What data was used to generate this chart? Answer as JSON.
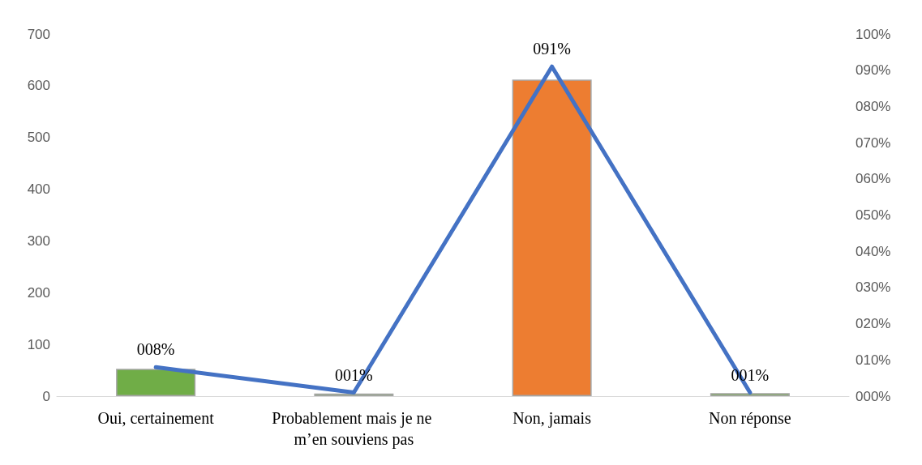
{
  "chart_data": {
    "type": "bar",
    "categories": [
      "Oui, certainement",
      "Probablement mais je ne m’en souviens pas",
      "Non, jamais",
      "Non réponse"
    ],
    "series": [
      {
        "colors": [
          "#70ad47",
          "#70ad47",
          "#ed7d31",
          "#70ad47"
        ],
        "values": [
          53,
          5,
          612,
          6
        ]
      },
      {
        "type": "line",
        "axis": "y2",
        "color": "#4472c4",
        "values": [
          8,
          1,
          91,
          1
        ],
        "value_labels": [
          "008%",
          "001%",
          "091%",
          "001%"
        ],
        "marker": "none"
      }
    ],
    "ylim": [
      0,
      700
    ],
    "yticks": [
      0,
      100,
      200,
      300,
      400,
      500,
      600,
      700
    ],
    "y2lim": [
      0,
      100
    ],
    "y2ticks": [
      {
        "value": 0,
        "label": "000%"
      },
      {
        "value": 10,
        "label": "010%"
      },
      {
        "value": 20,
        "label": "020%"
      },
      {
        "value": 30,
        "label": "030%"
      },
      {
        "value": 40,
        "label": "040%"
      },
      {
        "value": 50,
        "label": "050%"
      },
      {
        "value": 60,
        "label": "060%"
      },
      {
        "value": 70,
        "label": "070%"
      },
      {
        "value": 80,
        "label": "080%"
      },
      {
        "value": 90,
        "label": "090%"
      },
      {
        "value": 100,
        "label": "100%"
      }
    ],
    "grid": false
  }
}
